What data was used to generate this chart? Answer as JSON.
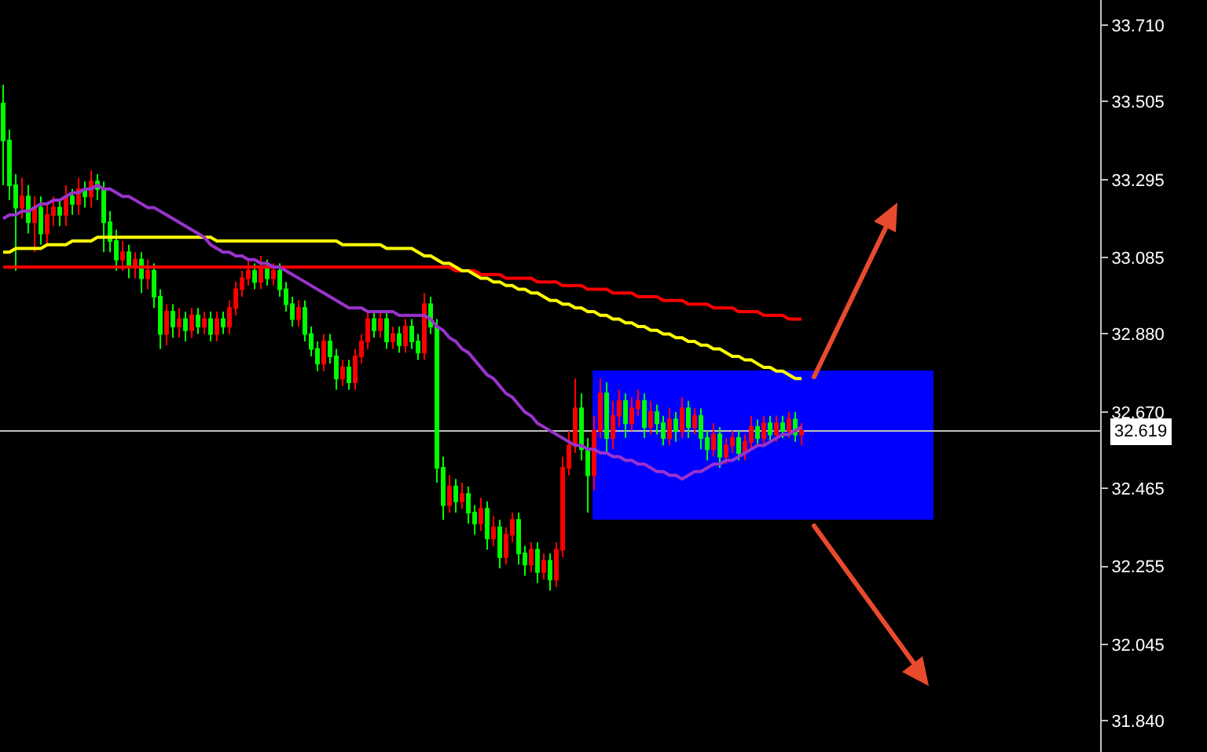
{
  "chart_data": {
    "type": "candlestick",
    "categories": [
      null,
      null,
      null,
      null,
      null,
      null,
      null,
      null,
      null,
      null,
      null,
      null,
      null,
      null,
      null,
      null,
      null,
      null,
      null,
      null,
      null,
      null,
      null,
      null,
      null,
      null,
      null,
      null,
      null,
      null,
      null,
      null,
      null,
      null,
      null,
      null,
      null,
      null,
      null,
      null,
      null,
      null,
      null,
      null,
      null,
      null,
      null,
      null,
      null,
      null,
      null,
      null,
      null,
      null,
      null,
      null,
      null,
      null,
      null,
      null,
      null,
      null,
      null,
      null,
      null,
      null,
      null,
      null,
      null,
      null,
      null,
      null,
      null,
      null,
      null,
      null,
      null,
      null,
      null,
      null,
      null,
      null,
      null,
      null,
      null,
      null,
      null,
      null,
      null,
      null,
      null,
      null,
      null,
      null,
      null,
      null,
      null,
      null,
      null,
      null,
      null,
      null,
      null,
      null,
      null,
      null,
      null,
      null,
      null,
      null,
      null,
      null,
      null,
      null,
      null,
      null,
      null,
      null,
      null,
      null,
      null,
      null,
      null,
      null,
      null,
      null,
      null,
      null,
      null,
      null,
      null,
      null,
      null,
      null,
      null,
      null,
      null,
      null,
      null,
      null,
      null,
      null,
      null,
      null,
      null,
      null,
      null,
      null,
      null,
      null,
      null,
      null,
      null,
      null,
      null,
      null,
      null,
      null,
      null,
      null,
      null,
      null,
      null,
      null,
      null,
      null,
      null,
      null,
      null,
      null,
      null,
      null,
      null,
      null,
      null
    ],
    "ohlc": [
      [
        33.5,
        33.55,
        33.28,
        33.4
      ],
      [
        33.4,
        33.43,
        33.24,
        33.28
      ],
      [
        33.28,
        33.31,
        33.05,
        33.22
      ],
      [
        33.22,
        33.3,
        33.19,
        33.25
      ],
      [
        33.25,
        33.28,
        33.15,
        33.18
      ],
      [
        33.18,
        33.25,
        33.1,
        33.22
      ],
      [
        33.22,
        33.25,
        33.12,
        33.15
      ],
      [
        33.15,
        33.23,
        33.12,
        33.2
      ],
      [
        33.2,
        33.25,
        33.17,
        33.22
      ],
      [
        33.22,
        33.24,
        33.17,
        33.2
      ],
      [
        33.2,
        33.28,
        33.17,
        33.25
      ],
      [
        33.25,
        33.27,
        33.2,
        33.23
      ],
      [
        33.23,
        33.3,
        33.2,
        33.27
      ],
      [
        33.27,
        33.29,
        33.22,
        33.25
      ],
      [
        33.25,
        33.32,
        33.22,
        33.29
      ],
      [
        33.29,
        33.31,
        33.24,
        33.27
      ],
      [
        33.27,
        33.29,
        33.1,
        33.18
      ],
      [
        33.18,
        33.21,
        33.1,
        33.13
      ],
      [
        33.13,
        33.16,
        33.05,
        33.08
      ],
      [
        33.08,
        33.13,
        33.05,
        33.1
      ],
      [
        33.1,
        33.12,
        33.03,
        33.06
      ],
      [
        33.06,
        33.1,
        33.03,
        33.08
      ],
      [
        33.08,
        33.1,
        32.99,
        33.03
      ],
      [
        33.03,
        33.08,
        33.0,
        33.05
      ],
      [
        33.05,
        33.07,
        32.95,
        32.98
      ],
      [
        32.98,
        33.0,
        32.84,
        32.88
      ],
      [
        32.88,
        32.96,
        32.85,
        32.94
      ],
      [
        32.94,
        32.96,
        32.87,
        32.9
      ],
      [
        32.9,
        32.95,
        32.87,
        32.92
      ],
      [
        32.92,
        32.94,
        32.86,
        32.89
      ],
      [
        32.89,
        32.95,
        32.87,
        32.93
      ],
      [
        32.93,
        32.95,
        32.88,
        32.9
      ],
      [
        32.9,
        32.94,
        32.88,
        32.92
      ],
      [
        32.92,
        32.94,
        32.86,
        32.88
      ],
      [
        32.88,
        32.94,
        32.86,
        32.92
      ],
      [
        32.92,
        32.94,
        32.88,
        32.9
      ],
      [
        32.9,
        32.97,
        32.88,
        32.95
      ],
      [
        32.95,
        33.02,
        32.93,
        33.0
      ],
      [
        33.0,
        33.05,
        32.98,
        33.03
      ],
      [
        33.03,
        33.08,
        33.01,
        33.05
      ],
      [
        33.05,
        33.07,
        33.0,
        33.02
      ],
      [
        33.02,
        33.09,
        33.0,
        33.06
      ],
      [
        33.06,
        33.08,
        33.01,
        33.03
      ],
      [
        33.03,
        33.07,
        33.01,
        33.05
      ],
      [
        33.05,
        33.07,
        32.98,
        33.0
      ],
      [
        33.0,
        33.02,
        32.94,
        32.96
      ],
      [
        32.96,
        32.98,
        32.9,
        32.92
      ],
      [
        32.92,
        32.97,
        32.9,
        32.95
      ],
      [
        32.95,
        32.97,
        32.86,
        32.88
      ],
      [
        32.88,
        32.9,
        32.82,
        32.84
      ],
      [
        32.84,
        32.86,
        32.78,
        32.8
      ],
      [
        32.8,
        32.88,
        32.78,
        32.86
      ],
      [
        32.86,
        32.88,
        32.8,
        32.82
      ],
      [
        32.82,
        32.84,
        32.73,
        32.76
      ],
      [
        32.76,
        32.81,
        32.74,
        32.79
      ],
      [
        32.79,
        32.81,
        32.73,
        32.75
      ],
      [
        32.75,
        32.84,
        32.73,
        32.82
      ],
      [
        32.82,
        32.88,
        32.8,
        32.86
      ],
      [
        32.86,
        32.94,
        32.84,
        32.92
      ],
      [
        32.92,
        32.94,
        32.87,
        32.89
      ],
      [
        32.89,
        32.94,
        32.87,
        32.92
      ],
      [
        32.92,
        32.94,
        32.84,
        32.86
      ],
      [
        32.86,
        32.9,
        32.84,
        32.88
      ],
      [
        32.88,
        32.9,
        32.83,
        32.85
      ],
      [
        32.85,
        32.92,
        32.83,
        32.9
      ],
      [
        32.9,
        32.92,
        32.84,
        32.86
      ],
      [
        32.86,
        32.88,
        32.81,
        32.83
      ],
      [
        32.83,
        32.99,
        32.81,
        32.96
      ],
      [
        32.96,
        32.98,
        32.88,
        32.9
      ],
      [
        32.9,
        32.92,
        32.48,
        32.52
      ],
      [
        32.52,
        32.55,
        32.38,
        32.42
      ],
      [
        32.42,
        32.5,
        32.4,
        32.47
      ],
      [
        32.47,
        32.49,
        32.4,
        32.43
      ],
      [
        32.43,
        32.48,
        32.41,
        32.45
      ],
      [
        32.45,
        32.47,
        32.37,
        32.4
      ],
      [
        32.4,
        32.42,
        32.34,
        32.37
      ],
      [
        32.37,
        32.44,
        32.35,
        32.41
      ],
      [
        32.41,
        32.43,
        32.3,
        32.33
      ],
      [
        32.33,
        32.39,
        32.31,
        32.36
      ],
      [
        32.36,
        32.38,
        32.25,
        32.28
      ],
      [
        32.28,
        32.36,
        32.26,
        32.34
      ],
      [
        32.34,
        32.4,
        32.32,
        32.38
      ],
      [
        32.38,
        32.4,
        32.26,
        32.29
      ],
      [
        32.29,
        32.31,
        32.23,
        32.26
      ],
      [
        32.26,
        32.32,
        32.24,
        32.3
      ],
      [
        32.3,
        32.32,
        32.21,
        32.24
      ],
      [
        32.24,
        32.29,
        32.22,
        32.27
      ],
      [
        32.27,
        32.29,
        32.19,
        32.22
      ],
      [
        32.22,
        32.32,
        32.2,
        32.3
      ],
      [
        32.3,
        32.55,
        32.28,
        32.52
      ],
      [
        32.52,
        32.62,
        32.5,
        32.58
      ],
      [
        32.58,
        32.76,
        32.56,
        32.68
      ],
      [
        32.68,
        32.72,
        32.54,
        32.57
      ],
      [
        32.57,
        32.6,
        32.4,
        32.5
      ],
      [
        32.5,
        32.66,
        32.46,
        32.62
      ],
      [
        32.62,
        32.76,
        32.6,
        32.72
      ],
      [
        32.72,
        32.75,
        32.56,
        32.6
      ],
      [
        32.6,
        32.7,
        32.57,
        32.66
      ],
      [
        32.66,
        32.73,
        32.63,
        32.7
      ],
      [
        32.7,
        32.72,
        32.6,
        32.64
      ],
      [
        32.64,
        32.71,
        32.62,
        32.68
      ],
      [
        32.68,
        32.73,
        32.66,
        32.7
      ],
      [
        32.7,
        32.72,
        32.6,
        32.63
      ],
      [
        32.63,
        32.7,
        32.61,
        32.67
      ],
      [
        32.67,
        32.69,
        32.61,
        32.64
      ],
      [
        32.64,
        32.66,
        32.58,
        32.6
      ],
      [
        32.6,
        32.68,
        32.58,
        32.65
      ],
      [
        32.65,
        32.67,
        32.59,
        32.62
      ],
      [
        32.62,
        32.71,
        32.6,
        32.68
      ],
      [
        32.68,
        32.7,
        32.6,
        32.63
      ],
      [
        32.63,
        32.68,
        32.61,
        32.66
      ],
      [
        32.66,
        32.68,
        32.57,
        32.6
      ],
      [
        32.6,
        32.62,
        32.54,
        32.57
      ],
      [
        32.57,
        32.64,
        32.55,
        32.61
      ],
      [
        32.61,
        32.63,
        32.52,
        32.55
      ],
      [
        32.55,
        32.6,
        32.53,
        32.58
      ],
      [
        32.58,
        32.62,
        32.56,
        32.6
      ],
      [
        32.6,
        32.62,
        32.54,
        32.56
      ],
      [
        32.56,
        32.61,
        32.54,
        32.59
      ],
      [
        32.59,
        32.66,
        32.57,
        32.63
      ],
      [
        32.63,
        32.65,
        32.58,
        32.6
      ],
      [
        32.6,
        32.66,
        32.58,
        32.64
      ],
      [
        32.64,
        32.66,
        32.59,
        32.61
      ],
      [
        32.61,
        32.66,
        32.59,
        32.64
      ],
      [
        32.64,
        32.66,
        32.6,
        32.62
      ],
      [
        32.62,
        32.67,
        32.6,
        32.65
      ],
      [
        32.65,
        32.67,
        32.59,
        32.61
      ],
      [
        32.61,
        32.64,
        32.58,
        32.62
      ],
      null,
      null,
      null,
      null,
      null,
      null,
      null,
      null,
      null,
      null,
      null,
      null,
      null,
      null,
      null,
      null,
      null,
      null,
      null,
      null,
      null,
      null,
      null,
      null,
      null,
      null,
      null,
      null,
      null,
      null,
      null,
      null,
      null,
      null,
      null,
      null,
      null,
      null,
      null,
      null,
      null,
      null,
      null,
      null,
      null,
      null,
      null
    ],
    "colors": [
      "#00ff00",
      "#00ff00",
      "#00ff00",
      "#ff0000",
      "#00ff00",
      "#ff0000",
      "#00ff00",
      "#ff0000",
      "#ff0000",
      "#00ff00",
      "#ff0000",
      "#00ff00",
      "#ff0000",
      "#00ff00",
      "#ff0000",
      "#00ff00",
      "#00ff00",
      "#00ff00",
      "#00ff00",
      "#ff0000",
      "#00ff00",
      "#ff0000",
      "#00ff00",
      "#ff0000",
      "#00ff00",
      "#00ff00",
      "#ff0000",
      "#00ff00",
      "#ff0000",
      "#00ff00",
      "#ff0000",
      "#00ff00",
      "#ff0000",
      "#00ff00",
      "#ff0000",
      "#00ff00",
      "#ff0000",
      "#ff0000",
      "#ff0000",
      "#ff0000",
      "#00ff00",
      "#ff0000",
      "#00ff00",
      "#ff0000",
      "#00ff00",
      "#00ff00",
      "#00ff00",
      "#ff0000",
      "#00ff00",
      "#00ff00",
      "#00ff00",
      "#ff0000",
      "#00ff00",
      "#00ff00",
      "#ff0000",
      "#00ff00",
      "#ff0000",
      "#ff0000",
      "#ff0000",
      "#00ff00",
      "#ff0000",
      "#00ff00",
      "#ff0000",
      "#00ff00",
      "#ff0000",
      "#00ff00",
      "#00ff00",
      "#ff0000",
      "#00ff00",
      "#00ff00",
      "#00ff00",
      "#ff0000",
      "#00ff00",
      "#ff0000",
      "#00ff00",
      "#00ff00",
      "#ff0000",
      "#00ff00",
      "#ff0000",
      "#00ff00",
      "#ff0000",
      "#ff0000",
      "#00ff00",
      "#00ff00",
      "#ff0000",
      "#00ff00",
      "#ff0000",
      "#00ff00",
      "#ff0000",
      "#ff0000",
      "#ff0000",
      "#ff0000",
      "#00ff00",
      "#00ff00",
      "#ff0000",
      "#ff0000",
      "#00ff00",
      "#ff0000",
      "#ff0000",
      "#00ff00",
      "#ff0000",
      "#ff0000",
      "#00ff00",
      "#ff0000",
      "#00ff00",
      "#00ff00",
      "#ff0000",
      "#00ff00",
      "#ff0000",
      "#00ff00",
      "#ff0000",
      "#00ff00",
      "#00ff00",
      "#ff0000",
      "#00ff00",
      "#ff0000",
      "#ff0000",
      "#00ff00",
      "#ff0000",
      "#ff0000",
      "#00ff00",
      "#ff0000",
      "#00ff00",
      "#ff0000",
      "#00ff00",
      "#ff0000",
      "#00ff00",
      "#ff0000",
      null,
      null,
      null,
      null,
      null,
      null,
      null,
      null,
      null,
      null,
      null,
      null,
      null,
      null,
      null,
      null,
      null,
      null,
      null,
      null,
      null,
      null,
      null,
      null,
      null,
      null,
      null,
      null,
      null,
      null,
      null,
      null,
      null,
      null,
      null,
      null,
      null,
      null,
      null,
      null,
      null,
      null,
      null,
      null,
      null,
      null,
      null
    ],
    "series": [
      {
        "type": "line",
        "color": "#ff0000",
        "values": [
          33.06,
          33.06,
          33.06,
          33.06,
          33.06,
          33.06,
          33.06,
          33.06,
          33.06,
          33.06,
          33.06,
          33.06,
          33.06,
          33.06,
          33.06,
          33.06,
          33.06,
          33.06,
          33.06,
          33.06,
          33.06,
          33.06,
          33.06,
          33.06,
          33.06,
          33.06,
          33.06,
          33.06,
          33.06,
          33.06,
          33.06,
          33.06,
          33.06,
          33.06,
          33.06,
          33.06,
          33.06,
          33.06,
          33.06,
          33.06,
          33.06,
          33.06,
          33.06,
          33.06,
          33.06,
          33.06,
          33.06,
          33.06,
          33.06,
          33.06,
          33.06,
          33.06,
          33.06,
          33.06,
          33.06,
          33.06,
          33.06,
          33.06,
          33.06,
          33.06,
          33.06,
          33.06,
          33.06,
          33.06,
          33.06,
          33.06,
          33.06,
          33.06,
          33.06,
          33.06,
          33.06,
          33.06,
          33.05,
          33.05,
          33.05,
          33.05,
          33.04,
          33.04,
          33.04,
          33.04,
          33.03,
          33.03,
          33.03,
          33.03,
          33.03,
          33.02,
          33.02,
          33.02,
          33.02,
          33.01,
          33.01,
          33.01,
          33.01,
          33.0,
          33.0,
          33.0,
          33.0,
          32.99,
          32.99,
          32.99,
          32.99,
          32.98,
          32.98,
          32.98,
          32.98,
          32.97,
          32.97,
          32.97,
          32.97,
          32.96,
          32.96,
          32.96,
          32.96,
          32.95,
          32.95,
          32.95,
          32.95,
          32.94,
          32.94,
          32.94,
          32.94,
          32.93,
          32.93,
          32.93,
          32.93,
          32.92,
          32.92,
          32.92,
          null,
          null,
          null,
          null,
          null,
          null,
          null,
          null,
          null,
          null,
          null,
          null,
          null,
          null,
          null,
          null,
          null,
          null,
          null,
          null,
          null,
          null,
          null,
          null,
          null,
          null,
          null,
          null,
          null,
          null,
          null,
          null,
          null,
          null,
          null,
          null,
          null,
          null,
          null,
          null,
          null,
          null,
          null,
          null,
          null,
          null,
          null
        ]
      },
      {
        "type": "line",
        "color": "#ffff00",
        "values": [
          33.1,
          33.1,
          33.11,
          33.11,
          33.11,
          33.11,
          33.11,
          33.12,
          33.12,
          33.12,
          33.12,
          33.13,
          33.13,
          33.13,
          33.13,
          33.14,
          33.14,
          33.14,
          33.14,
          33.14,
          33.14,
          33.14,
          33.14,
          33.14,
          33.14,
          33.14,
          33.14,
          33.14,
          33.14,
          33.14,
          33.14,
          33.14,
          33.14,
          33.14,
          33.13,
          33.13,
          33.13,
          33.13,
          33.13,
          33.13,
          33.13,
          33.13,
          33.13,
          33.13,
          33.13,
          33.13,
          33.13,
          33.13,
          33.13,
          33.13,
          33.13,
          33.13,
          33.13,
          33.13,
          33.12,
          33.12,
          33.12,
          33.12,
          33.12,
          33.12,
          33.12,
          33.11,
          33.11,
          33.11,
          33.11,
          33.11,
          33.1,
          33.09,
          33.09,
          33.08,
          33.07,
          33.07,
          33.06,
          33.05,
          33.05,
          33.04,
          33.03,
          33.03,
          33.02,
          33.02,
          33.01,
          33.01,
          33.0,
          33.0,
          32.99,
          32.99,
          32.98,
          32.97,
          32.97,
          32.96,
          32.96,
          32.95,
          32.95,
          32.94,
          32.94,
          32.93,
          32.93,
          32.92,
          32.92,
          32.91,
          32.91,
          32.9,
          32.9,
          32.89,
          32.89,
          32.88,
          32.88,
          32.87,
          32.87,
          32.86,
          32.86,
          32.85,
          32.85,
          32.84,
          32.84,
          32.83,
          32.82,
          32.82,
          32.81,
          32.81,
          32.8,
          32.79,
          32.79,
          32.78,
          32.78,
          32.77,
          32.76,
          32.76,
          null,
          null,
          null,
          null,
          null,
          null,
          null,
          null,
          null,
          null,
          null,
          null,
          null,
          null,
          null,
          null,
          null,
          null,
          null,
          null,
          null,
          null,
          null,
          null,
          null,
          null,
          null,
          null,
          null,
          null,
          null,
          null,
          null,
          null,
          null,
          null,
          null,
          null,
          null,
          null,
          null,
          null,
          null,
          null,
          null,
          null,
          null
        ]
      },
      {
        "type": "line",
        "color": "#9933cc",
        "values": [
          33.19,
          33.2,
          33.2,
          33.21,
          33.21,
          33.22,
          33.23,
          33.23,
          33.24,
          33.24,
          33.25,
          33.26,
          33.26,
          33.27,
          33.27,
          33.28,
          33.27,
          33.27,
          33.26,
          33.25,
          33.25,
          33.24,
          33.23,
          33.22,
          33.22,
          33.21,
          33.2,
          33.19,
          33.18,
          33.17,
          33.16,
          33.15,
          33.14,
          33.12,
          33.11,
          33.1,
          33.1,
          33.09,
          33.09,
          33.08,
          33.08,
          33.07,
          33.07,
          33.06,
          33.06,
          33.05,
          33.04,
          33.03,
          33.02,
          33.01,
          33.0,
          32.99,
          32.98,
          32.97,
          32.96,
          32.95,
          32.95,
          32.95,
          32.94,
          32.94,
          32.94,
          32.94,
          32.94,
          32.93,
          32.93,
          32.93,
          32.93,
          32.93,
          32.92,
          32.9,
          32.89,
          32.87,
          32.86,
          32.84,
          32.83,
          32.81,
          32.79,
          32.77,
          32.76,
          32.74,
          32.72,
          32.71,
          32.69,
          32.67,
          32.66,
          32.64,
          32.63,
          32.62,
          32.61,
          32.6,
          32.59,
          32.58,
          32.58,
          32.57,
          32.57,
          32.56,
          32.56,
          32.55,
          32.55,
          32.54,
          32.54,
          32.53,
          32.53,
          32.52,
          32.51,
          32.51,
          32.5,
          32.5,
          32.49,
          32.5,
          32.51,
          32.51,
          32.52,
          32.53,
          32.53,
          32.54,
          32.54,
          32.55,
          32.56,
          32.57,
          32.58,
          32.58,
          32.59,
          32.6,
          32.61,
          32.61,
          32.62,
          32.63,
          null,
          null,
          null,
          null,
          null,
          null,
          null,
          null,
          null,
          null,
          null,
          null,
          null,
          null,
          null,
          null,
          null,
          null,
          null,
          null,
          null,
          null,
          null,
          null,
          null,
          null,
          null,
          null,
          null,
          null,
          null,
          null,
          null,
          null,
          null,
          null,
          null,
          null,
          null,
          null,
          null,
          null,
          null,
          null,
          null,
          null,
          null
        ]
      }
    ],
    "ylim": [
      31.756,
      33.778
    ],
    "yticks": [
      {
        "value": 31.84,
        "label": "31.840"
      },
      32.045,
      32.255,
      32.465,
      {
        "value": 32.67,
        "label": "32.670"
      },
      {
        "value": 32.88,
        "label": "32.880"
      },
      33.085,
      33.295,
      33.505,
      {
        "value": 33.71,
        "label": "33.710"
      }
    ],
    "ref_lines": [
      {
        "axis": "y",
        "value": 32.619,
        "label": "32.619",
        "color": "#c0c0c0"
      }
    ],
    "tick_labels": "y"
  }
}
